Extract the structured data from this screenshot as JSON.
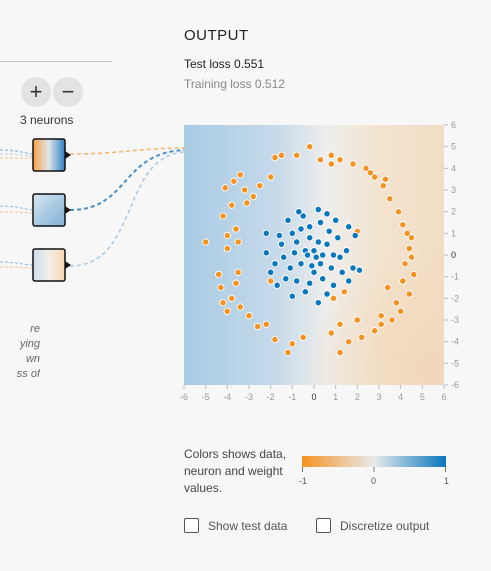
{
  "layer": {
    "add_label": "+",
    "remove_label": "−",
    "neurons_label": "3 neurons"
  },
  "left_note": [
    "re",
    "ying",
    "wn",
    "ss of"
  ],
  "output": {
    "title": "OUTPUT",
    "test_loss": "Test loss 0.551",
    "training_loss": "Training loss 0.512"
  },
  "chart_data": {
    "type": "scatter",
    "xlim": [
      -6,
      6
    ],
    "ylim": [
      -6,
      6
    ],
    "x_ticks": [
      "-6",
      "-5",
      "-4",
      "-3",
      "-2",
      "-1",
      "0",
      "1",
      "2",
      "3",
      "4",
      "5",
      "6"
    ],
    "y_ticks": [
      "6",
      "5",
      "4",
      "3",
      "2",
      "1",
      "0",
      "-1",
      "-2",
      "-3",
      "-4",
      "-5",
      "-6"
    ],
    "series": [
      {
        "color": "#f59322",
        "points": [
          [
            -1.8,
            4.5
          ],
          [
            -1.5,
            4.6
          ],
          [
            -0.8,
            4.6
          ],
          [
            -0.2,
            5.0
          ],
          [
            0.3,
            4.4
          ],
          [
            0.8,
            4.6
          ],
          [
            1.2,
            4.4
          ],
          [
            1.8,
            4.2
          ],
          [
            2.4,
            4.0
          ],
          [
            2.8,
            3.6
          ],
          [
            3.2,
            3.2
          ],
          [
            3.5,
            2.6
          ],
          [
            3.9,
            2.0
          ],
          [
            4.1,
            1.4
          ],
          [
            4.5,
            0.8
          ],
          [
            4.4,
            0.3
          ],
          [
            4.2,
            -0.4
          ],
          [
            4.6,
            -0.9
          ],
          [
            4.1,
            -1.2
          ],
          [
            4.4,
            -1.8
          ],
          [
            3.8,
            -2.2
          ],
          [
            4.0,
            -2.6
          ],
          [
            3.6,
            -3.0
          ],
          [
            3.1,
            -3.2
          ],
          [
            2.8,
            -3.5
          ],
          [
            2.2,
            -3.8
          ],
          [
            1.6,
            -4.0
          ],
          [
            1.2,
            -4.5
          ],
          [
            0.8,
            -3.6
          ],
          [
            -1.0,
            -4.1
          ],
          [
            -1.2,
            -4.5
          ],
          [
            -1.8,
            -3.9
          ],
          [
            -2.2,
            -3.2
          ],
          [
            -2.6,
            -3.3
          ],
          [
            -3.4,
            -2.4
          ],
          [
            -3.8,
            -2.0
          ],
          [
            -4.0,
            -2.6
          ],
          [
            -4.3,
            -1.5
          ],
          [
            -4.4,
            -0.9
          ],
          [
            -3.5,
            -0.8
          ],
          [
            -3.6,
            -1.3
          ],
          [
            -4.0,
            0.3
          ],
          [
            -3.5,
            0.6
          ],
          [
            -3.6,
            1.2
          ],
          [
            -4.2,
            1.8
          ],
          [
            -3.8,
            2.3
          ],
          [
            -4.1,
            3.1
          ],
          [
            -3.7,
            3.4
          ],
          [
            -3.2,
            3.0
          ],
          [
            -2.8,
            2.7
          ],
          [
            -3.4,
            3.7
          ],
          [
            -2.5,
            3.2
          ],
          [
            -5.0,
            0.6
          ],
          [
            -4.0,
            0.9
          ],
          [
            -2.0,
            -1.2
          ],
          [
            2.0,
            1.1
          ],
          [
            0.9,
            -2.0
          ],
          [
            1.4,
            -1.7
          ],
          [
            3.3,
            3.5
          ],
          [
            3.1,
            -2.8
          ],
          [
            3.4,
            -1.5
          ],
          [
            2.0,
            -3.0
          ],
          [
            1.2,
            -3.2
          ],
          [
            0.8,
            4.2
          ],
          [
            -2.0,
            3.6
          ],
          [
            -3.1,
            2.4
          ],
          [
            -3.0,
            -2.8
          ],
          [
            4.3,
            1.0
          ],
          [
            4.5,
            -0.1
          ],
          [
            2.6,
            3.8
          ],
          [
            -0.5,
            -3.8
          ],
          [
            -4.2,
            -2.2
          ]
        ]
      },
      {
        "color": "#0877bd",
        "points": [
          [
            -0.5,
            1.8
          ],
          [
            -0.2,
            1.3
          ],
          [
            0.3,
            1.5
          ],
          [
            0.6,
            1.9
          ],
          [
            1.0,
            1.6
          ],
          [
            -1.0,
            1.0
          ],
          [
            -1.5,
            0.5
          ],
          [
            -0.8,
            0.6
          ],
          [
            -0.2,
            0.8
          ],
          [
            0.2,
            0.6
          ],
          [
            0.6,
            0.5
          ],
          [
            1.1,
            0.8
          ],
          [
            1.5,
            0.2
          ],
          [
            0.9,
            0.0
          ],
          [
            0.4,
            0.0
          ],
          [
            0.0,
            0.2
          ],
          [
            -0.4,
            0.2
          ],
          [
            -0.9,
            0.1
          ],
          [
            -1.4,
            -0.1
          ],
          [
            -1.8,
            -0.4
          ],
          [
            -1.1,
            -0.6
          ],
          [
            -0.6,
            -0.4
          ],
          [
            -0.1,
            -0.5
          ],
          [
            0.3,
            -0.4
          ],
          [
            0.8,
            -0.6
          ],
          [
            1.3,
            -0.8
          ],
          [
            1.8,
            -0.6
          ],
          [
            -1.3,
            -1.1
          ],
          [
            -0.8,
            -1.2
          ],
          [
            -0.2,
            -1.3
          ],
          [
            0.4,
            -1.1
          ],
          [
            0.9,
            -1.4
          ],
          [
            0.6,
            -1.8
          ],
          [
            -0.4,
            -1.7
          ],
          [
            -1.0,
            -1.9
          ],
          [
            0.2,
            -2.2
          ],
          [
            -2.2,
            0.1
          ],
          [
            -2.2,
            1.0
          ],
          [
            -2.0,
            -0.8
          ],
          [
            1.9,
            0.9
          ],
          [
            2.1,
            -0.7
          ],
          [
            -1.2,
            1.6
          ],
          [
            -0.7,
            2.0
          ],
          [
            0.2,
            2.1
          ],
          [
            1.6,
            1.3
          ],
          [
            -0.3,
            0.0
          ],
          [
            0.1,
            -0.1
          ],
          [
            -0.6,
            1.2
          ],
          [
            0.7,
            1.1
          ],
          [
            -1.6,
            0.9
          ],
          [
            1.2,
            -0.1
          ],
          [
            -1.7,
            -1.4
          ],
          [
            0.0,
            -0.8
          ],
          [
            1.6,
            -1.2
          ]
        ]
      }
    ],
    "colorbar": {
      "ticks": [
        "-1",
        "0",
        "1"
      ],
      "colors": [
        "#f59322",
        "#e8eaeb",
        "#0877bd"
      ]
    }
  },
  "legend": {
    "colors_label": "Colors shows data, neuron and weight values."
  },
  "options": {
    "show_test_label": "Show test data",
    "discretize_label": "Discretize output"
  }
}
